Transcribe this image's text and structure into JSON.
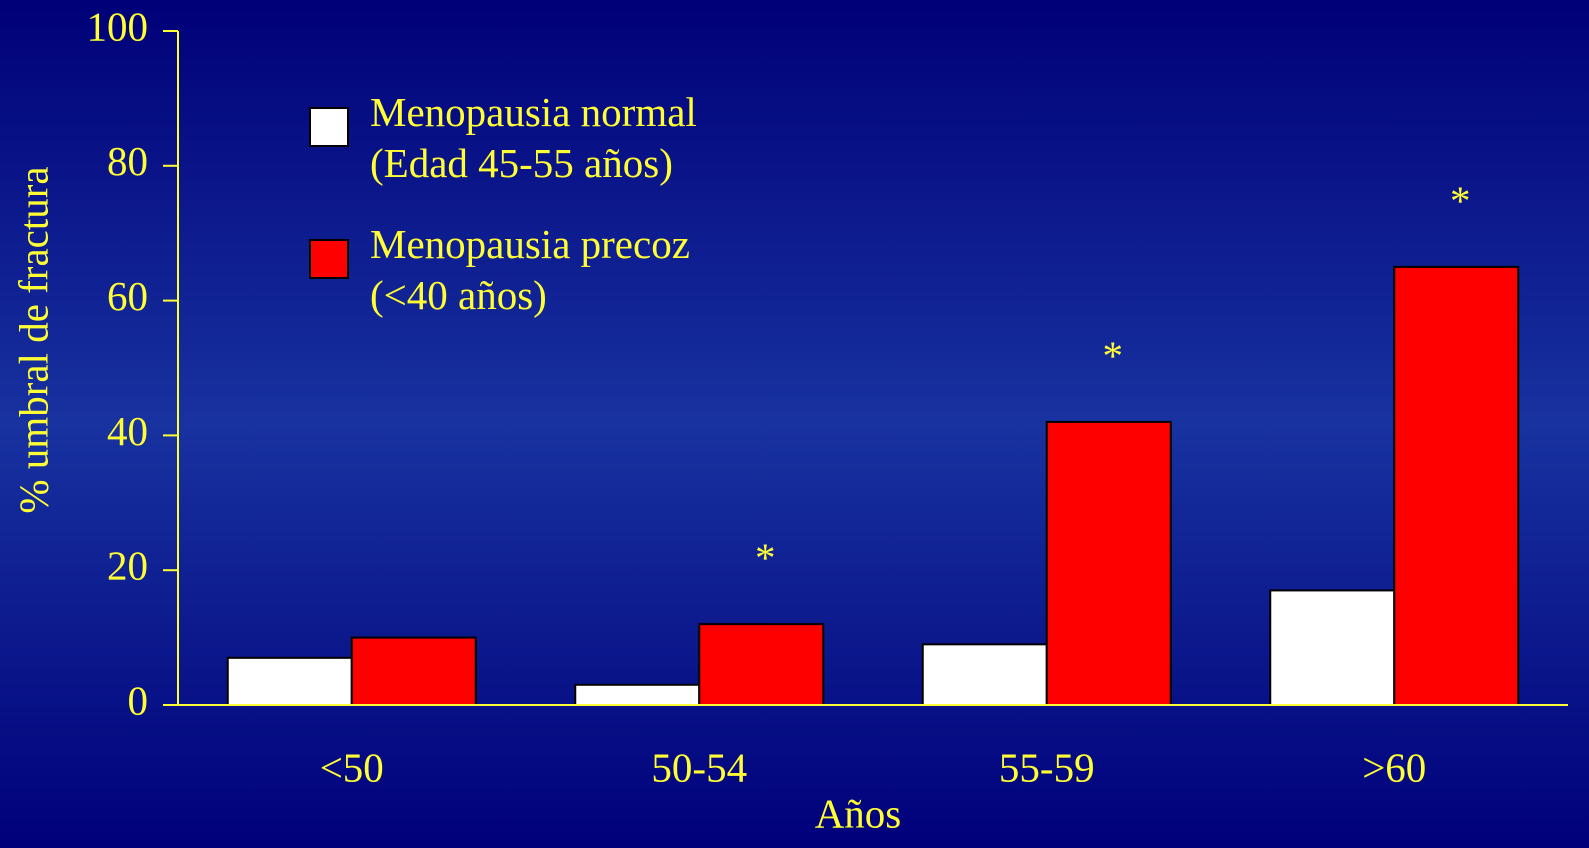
{
  "chart_data": {
    "type": "bar",
    "x_label": "Años",
    "y_label": "% umbral de fractura",
    "categories": [
      "<50",
      "50-54",
      "55-59",
      ">60"
    ],
    "series": [
      {
        "name": "Menopausia normal\n(Edad 45-55 años)",
        "color": "#ffffff",
        "values": [
          7,
          3,
          9,
          17
        ]
      },
      {
        "name": "Menopausia precoz\n(<40 años)",
        "color": "#ff0000",
        "values": [
          10,
          12,
          42,
          65
        ]
      }
    ],
    "annotations": [
      {
        "category": "50-54",
        "text": "*"
      },
      {
        "category": "55-59",
        "text": "*"
      },
      {
        "category": ">60",
        "text": "*"
      }
    ],
    "ylim": [
      0,
      100
    ],
    "yticks": [
      0,
      20,
      40,
      60,
      80,
      100
    ],
    "legend": "upper left",
    "grid": false
  }
}
